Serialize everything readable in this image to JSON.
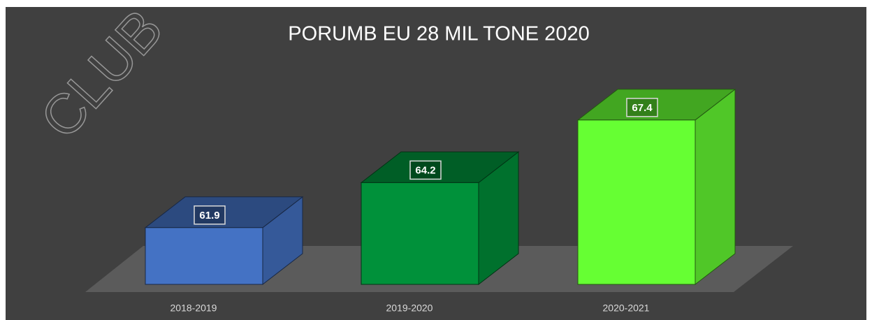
{
  "chart_data": {
    "type": "bar3d",
    "title": "PORUMB EU 28 MIL TONE 2020",
    "watermark": "CLUB",
    "categories": [
      "2018-2019",
      "2019-2020",
      "2020-2021"
    ],
    "values": [
      61.9,
      64.2,
      67.4
    ],
    "colors": [
      "#4472c4",
      "#00913a",
      "#66ff33"
    ],
    "ylim": [
      59,
      68
    ]
  }
}
